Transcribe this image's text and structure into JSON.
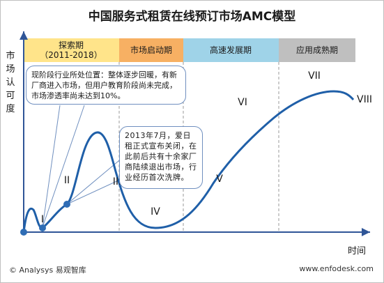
{
  "title": "中国服务式租赁在线预订市场AMC模型",
  "y_axis_label": "市场认可度",
  "x_axis_label": "时间",
  "phases": [
    {
      "line1": "探索期",
      "line2": "（2011-2018）",
      "color": "#ffe48a"
    },
    {
      "line1": "市场启动期",
      "line2": "",
      "color": "#f7b063"
    },
    {
      "line1": "高速发展期",
      "line2": "",
      "color": "#9fd3e8"
    },
    {
      "line1": "应用成熟期",
      "line2": "",
      "color": "#bfbfbf"
    }
  ],
  "stages": [
    "I",
    "II",
    "III",
    "IV",
    "V",
    "VI",
    "VII",
    "VIII"
  ],
  "notes": {
    "current_position": "现阶段行业所处位置：整体逐步回暖，有新厂商进入市场，但用户教育阶段尚未完成，市场渗透率尚未达到10%。",
    "event_2013": "2013年7月，爱日租正式宣布关闭，在此前后共有十余家厂商陆续退出市场，行业经历首次洗牌。"
  },
  "footer": {
    "source": "© Analysys 易观智库",
    "website": "www.enfodesk.com"
  },
  "colors": {
    "curve": "#1f5fa8",
    "axis": "#2f5597",
    "divider": "#999999"
  }
}
